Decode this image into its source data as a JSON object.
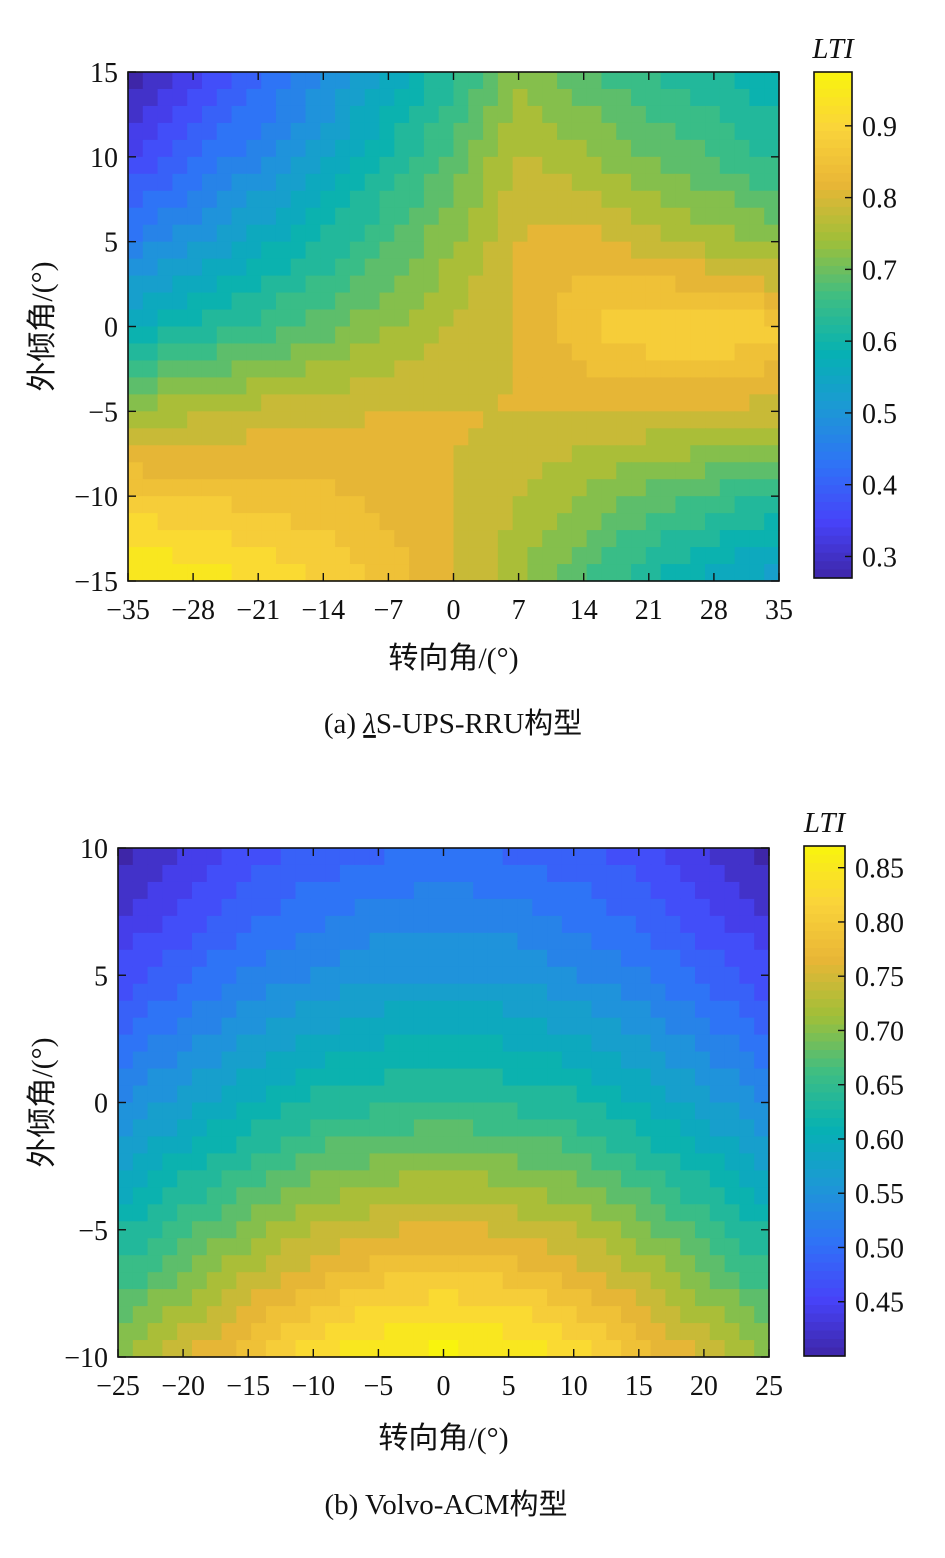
{
  "chart_data": [
    {
      "type": "heatmap",
      "panel_caption": "(a) λS-UPS-RRU构型",
      "caption_parts": {
        "prefix": "(a) ",
        "lambda": "λ",
        "body": "S-UPS-RRU构型"
      },
      "xlabel": "转向角/(°)",
      "ylabel": "外倾角/(°)",
      "colorbar_title": "LTI",
      "xlim": [
        -35,
        35
      ],
      "ylim": [
        -15,
        15
      ],
      "x_ticks": [
        -35,
        -28,
        -21,
        -14,
        -7,
        0,
        7,
        14,
        21,
        28,
        35
      ],
      "x_tick_labels": [
        "−35",
        "−28",
        "−21",
        "−14",
        "−7",
        "0",
        "7",
        "14",
        "21",
        "28",
        "35"
      ],
      "y_ticks": [
        15,
        10,
        5,
        0,
        -5,
        -10,
        -15
      ],
      "y_tick_labels": [
        "15",
        "10",
        "5",
        "0",
        "−5",
        "−10",
        "−15"
      ],
      "colorbar_range": [
        0.27,
        0.975
      ],
      "colorbar_ticks": [
        0.9,
        0.8,
        0.7,
        0.6,
        0.5,
        0.4,
        0.3
      ],
      "colorbar_tick_labels": [
        "0.9",
        "0.8",
        "0.7",
        "0.6",
        "0.5",
        "0.4",
        "0.3"
      ],
      "x": [
        -35,
        -28,
        -21,
        -14,
        -7,
        0,
        7,
        14,
        21,
        28,
        35
      ],
      "y": [
        15,
        10,
        5,
        0,
        -5,
        -10,
        -15
      ],
      "z": [
        [
          0.27,
          0.33,
          0.4,
          0.47,
          0.55,
          0.63,
          0.73,
          0.68,
          0.64,
          0.61,
          0.58
        ],
        [
          0.35,
          0.41,
          0.47,
          0.54,
          0.61,
          0.68,
          0.77,
          0.74,
          0.7,
          0.67,
          0.63
        ],
        [
          0.45,
          0.5,
          0.56,
          0.61,
          0.67,
          0.73,
          0.8,
          0.82,
          0.78,
          0.75,
          0.72
        ],
        [
          0.57,
          0.61,
          0.65,
          0.69,
          0.73,
          0.77,
          0.8,
          0.86,
          0.89,
          0.9,
          0.87
        ],
        [
          0.74,
          0.76,
          0.78,
          0.79,
          0.8,
          0.8,
          0.8,
          0.8,
          0.8,
          0.8,
          0.78
        ],
        [
          0.87,
          0.86,
          0.85,
          0.84,
          0.82,
          0.8,
          0.77,
          0.73,
          0.69,
          0.66,
          0.63
        ],
        [
          0.97,
          0.95,
          0.92,
          0.89,
          0.85,
          0.8,
          0.74,
          0.67,
          0.61,
          0.56,
          0.52
        ]
      ]
    },
    {
      "type": "heatmap",
      "panel_caption": "(b) Volvo-ACM构型",
      "caption_parts": {
        "prefix": "(b) ",
        "lambda": "",
        "body": "Volvo-ACM构型"
      },
      "xlabel": "转向角/(°)",
      "ylabel": "外倾角/(°)",
      "colorbar_title": "LTI",
      "xlim": [
        -25,
        25
      ],
      "ylim": [
        -10,
        10
      ],
      "x_ticks": [
        -25,
        -20,
        -15,
        -10,
        -5,
        0,
        5,
        10,
        15,
        20,
        25
      ],
      "x_tick_labels": [
        "−25",
        "−20",
        "−15",
        "−10",
        "−5",
        "0",
        "5",
        "10",
        "15",
        "20",
        "25"
      ],
      "y_ticks": [
        10,
        5,
        0,
        -5,
        -10
      ],
      "y_tick_labels": [
        "10",
        "5",
        "0",
        "−5",
        "−10"
      ],
      "colorbar_range": [
        0.4,
        0.87
      ],
      "colorbar_ticks": [
        0.85,
        0.8,
        0.75,
        0.7,
        0.65,
        0.6,
        0.55,
        0.5,
        0.45
      ],
      "colorbar_tick_labels": [
        "0.85",
        "0.80",
        "0.75",
        "0.70",
        "0.65",
        "0.60",
        "0.55",
        "0.50",
        "0.45"
      ],
      "x": [
        -25,
        -20,
        -15,
        -10,
        -5,
        0,
        5,
        10,
        15,
        20,
        25
      ],
      "y": [
        10,
        5,
        0,
        -5,
        -10
      ],
      "z": [
        [
          0.4,
          0.43,
          0.46,
          0.48,
          0.49,
          0.5,
          0.49,
          0.48,
          0.46,
          0.43,
          0.4
        ],
        [
          0.46,
          0.49,
          0.52,
          0.54,
          0.56,
          0.56,
          0.56,
          0.54,
          0.52,
          0.49,
          0.46
        ],
        [
          0.54,
          0.57,
          0.6,
          0.63,
          0.64,
          0.65,
          0.64,
          0.63,
          0.6,
          0.57,
          0.54
        ],
        [
          0.62,
          0.66,
          0.7,
          0.73,
          0.75,
          0.76,
          0.75,
          0.73,
          0.7,
          0.66,
          0.62
        ],
        [
          0.7,
          0.75,
          0.79,
          0.83,
          0.86,
          0.87,
          0.86,
          0.83,
          0.79,
          0.75,
          0.7
        ]
      ]
    }
  ],
  "colormap": [
    "#3e26a8",
    "#4743f9",
    "#2f72f7",
    "#1d98d6",
    "#06b1b3",
    "#3ebe83",
    "#a0bf38",
    "#e9b636",
    "#fad43a",
    "#f9f40d"
  ]
}
